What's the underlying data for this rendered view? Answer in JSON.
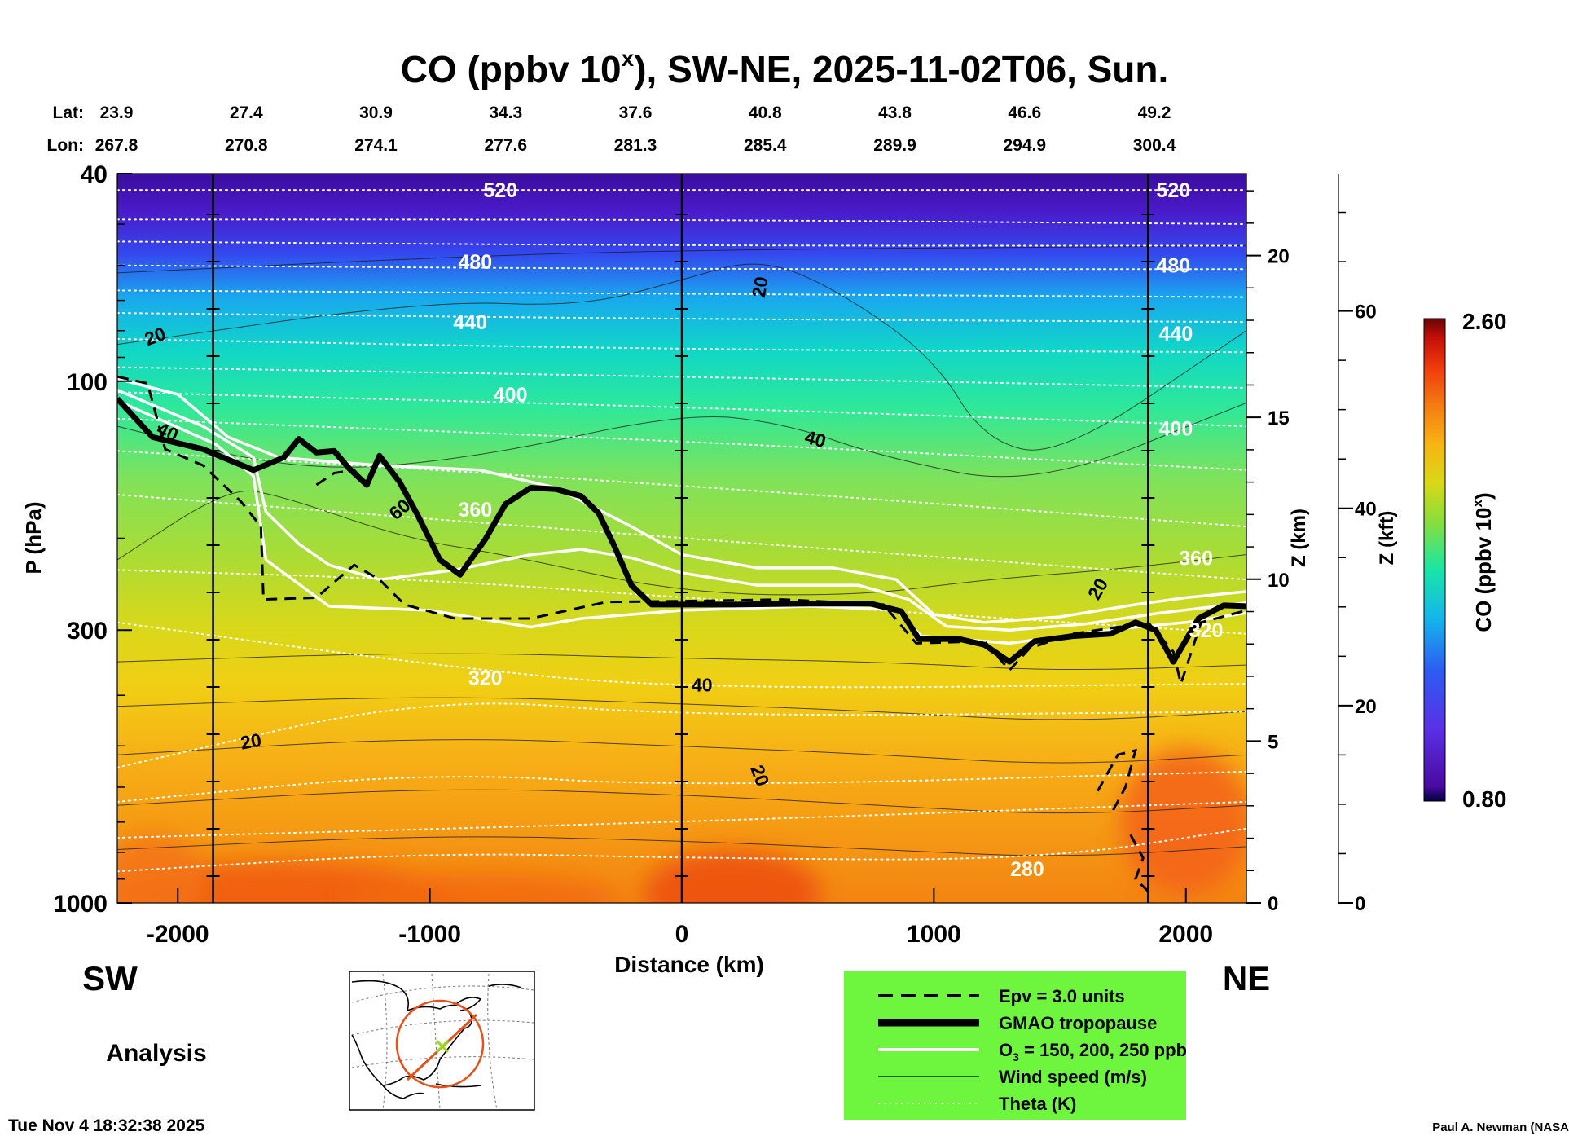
{
  "chart_data": {
    "type": "heatmap",
    "title": "CO (ppbv 10",
    "title_sup": "x",
    "title_rest": "), SW-NE, 2025-11-02T06, Sun.",
    "xlabel": "Distance (km)",
    "ylabel": "P (hPa)",
    "y2label": "Z (km)",
    "y3label": "Z (kft)",
    "x_range": [
      -2240,
      2240
    ],
    "y_range_hPa": [
      1000,
      40
    ],
    "y_scale": "log",
    "x_ticks": [
      "-2000",
      "-1000",
      "0",
      "1000",
      "2000"
    ],
    "x_tick_values": [
      -2000,
      -1000,
      0,
      1000,
      2000
    ],
    "p_ticks": [
      "40",
      "100",
      "300",
      "1000"
    ],
    "p_tick_values": [
      40,
      100,
      300,
      1000
    ],
    "z_km_ticks": [
      "0",
      "5",
      "10",
      "15",
      "20"
    ],
    "z_km_values": [
      0,
      5,
      10,
      15,
      20
    ],
    "z_kft_ticks": [
      "0",
      "20",
      "40",
      "60"
    ],
    "z_kft_values": [
      0,
      20,
      40,
      60
    ],
    "lat_label": "Lat:",
    "lon_label": "Lon:",
    "lat": [
      "23.9",
      "27.4",
      "30.9",
      "34.3",
      "37.6",
      "40.8",
      "43.8",
      "46.6",
      "49.2"
    ],
    "lon": [
      "267.8",
      "270.8",
      "274.1",
      "277.6",
      "281.3",
      "285.4",
      "289.9",
      "294.9",
      "300.4"
    ],
    "colorbar": {
      "label": "CO (ppbv 10",
      "label_sup": "x",
      "label_end": ")",
      "max": "2.60",
      "min": "0.80"
    },
    "theta_labels": [
      {
        "text": "520",
        "x": -720,
        "p": 43
      },
      {
        "text": "520",
        "x": 1950,
        "p": 43
      },
      {
        "text": "480",
        "x": -820,
        "p": 59
      },
      {
        "text": "480",
        "x": 1950,
        "p": 60
      },
      {
        "text": "440",
        "x": -840,
        "p": 77
      },
      {
        "text": "440",
        "x": 1960,
        "p": 81
      },
      {
        "text": "400",
        "x": -680,
        "p": 106
      },
      {
        "text": "400",
        "x": 1960,
        "p": 123
      },
      {
        "text": "360",
        "x": -820,
        "p": 176
      },
      {
        "text": "360",
        "x": 2040,
        "p": 218
      },
      {
        "text": "320",
        "x": -780,
        "p": 370
      },
      {
        "text": "320",
        "x": 2080,
        "p": 300
      },
      {
        "text": "280",
        "x": 1370,
        "p": 860
      }
    ],
    "wind_labels": [
      {
        "text": "20",
        "x": -2090,
        "p": 82,
        "rot": -20
      },
      {
        "text": "20",
        "x": 310,
        "p": 66,
        "rot": -80
      },
      {
        "text": "20",
        "x": -1710,
        "p": 490,
        "rot": -10
      },
      {
        "text": "20",
        "x": 310,
        "p": 570,
        "rot": 70
      },
      {
        "text": "20",
        "x": 1650,
        "p": 250,
        "rot": -60
      },
      {
        "text": "40",
        "x": -2040,
        "p": 125,
        "rot": 25
      },
      {
        "text": "40",
        "x": 530,
        "p": 129,
        "rot": 15
      },
      {
        "text": "40",
        "x": 80,
        "p": 382,
        "rot": 0
      },
      {
        "text": "60",
        "x": -1120,
        "p": 176,
        "rot": -40
      }
    ],
    "legend": [
      {
        "style": "epv",
        "label": "Epv = 3.0 units"
      },
      {
        "style": "trop",
        "label": "GMAO tropopause"
      },
      {
        "style": "o3",
        "label": "O",
        "sub": "3",
        "label_rest": " = 150, 200, 250 ppb"
      },
      {
        "style": "wind",
        "label": "Wind speed (m/s)"
      },
      {
        "style": "theta",
        "label": "Theta (K)"
      }
    ],
    "tropopause": [
      {
        "x": -2240,
        "p": 108
      },
      {
        "x": -2100,
        "p": 128
      },
      {
        "x": -1900,
        "p": 135
      },
      {
        "x": -1700,
        "p": 148
      },
      {
        "x": -1580,
        "p": 140
      },
      {
        "x": -1520,
        "p": 129
      },
      {
        "x": -1450,
        "p": 137
      },
      {
        "x": -1380,
        "p": 136
      },
      {
        "x": -1320,
        "p": 147
      },
      {
        "x": -1250,
        "p": 158
      },
      {
        "x": -1200,
        "p": 139
      },
      {
        "x": -1120,
        "p": 156
      },
      {
        "x": -1050,
        "p": 180
      },
      {
        "x": -960,
        "p": 220
      },
      {
        "x": -880,
        "p": 235
      },
      {
        "x": -850,
        "p": 224
      },
      {
        "x": -780,
        "p": 201
      },
      {
        "x": -700,
        "p": 172
      },
      {
        "x": -600,
        "p": 160
      },
      {
        "x": -500,
        "p": 161
      },
      {
        "x": -400,
        "p": 166
      },
      {
        "x": -330,
        "p": 179
      },
      {
        "x": -270,
        "p": 206
      },
      {
        "x": -200,
        "p": 246
      },
      {
        "x": -120,
        "p": 268
      },
      {
        "x": 0,
        "p": 268
      },
      {
        "x": 200,
        "p": 268
      },
      {
        "x": 500,
        "p": 267
      },
      {
        "x": 750,
        "p": 267
      },
      {
        "x": 870,
        "p": 276
      },
      {
        "x": 940,
        "p": 312
      },
      {
        "x": 1100,
        "p": 312
      },
      {
        "x": 1200,
        "p": 320
      },
      {
        "x": 1300,
        "p": 345
      },
      {
        "x": 1400,
        "p": 315
      },
      {
        "x": 1550,
        "p": 308
      },
      {
        "x": 1700,
        "p": 305
      },
      {
        "x": 1800,
        "p": 290
      },
      {
        "x": 1880,
        "p": 300
      },
      {
        "x": 1950,
        "p": 345
      },
      {
        "x": 2050,
        "p": 285
      },
      {
        "x": 2150,
        "p": 269
      },
      {
        "x": 2240,
        "p": 270
      }
    ],
    "o3_contours": [
      [
        {
          "x": -2240,
          "p": 99
        },
        {
          "x": -2000,
          "p": 106
        },
        {
          "x": -1800,
          "p": 128
        },
        {
          "x": -1600,
          "p": 140
        },
        {
          "x": -1200,
          "p": 145
        },
        {
          "x": -800,
          "p": 148
        },
        {
          "x": -500,
          "p": 160
        },
        {
          "x": -200,
          "p": 190
        },
        {
          "x": 0,
          "p": 215
        },
        {
          "x": 300,
          "p": 228
        },
        {
          "x": 600,
          "p": 228
        },
        {
          "x": 850,
          "p": 240
        },
        {
          "x": 1000,
          "p": 280
        },
        {
          "x": 1200,
          "p": 290
        },
        {
          "x": 1500,
          "p": 283
        },
        {
          "x": 1800,
          "p": 268
        },
        {
          "x": 2000,
          "p": 260
        },
        {
          "x": 2240,
          "p": 253
        }
      ],
      [
        {
          "x": -2240,
          "p": 104
        },
        {
          "x": -1900,
          "p": 122
        },
        {
          "x": -1700,
          "p": 140
        },
        {
          "x": -1650,
          "p": 178
        },
        {
          "x": -1520,
          "p": 205
        },
        {
          "x": -1400,
          "p": 225
        },
        {
          "x": -1200,
          "p": 240
        },
        {
          "x": -900,
          "p": 230
        },
        {
          "x": -600,
          "p": 215
        },
        {
          "x": -400,
          "p": 210
        },
        {
          "x": -200,
          "p": 218
        },
        {
          "x": 0,
          "p": 233
        },
        {
          "x": 300,
          "p": 246
        },
        {
          "x": 700,
          "p": 246
        },
        {
          "x": 900,
          "p": 262
        },
        {
          "x": 1050,
          "p": 295
        },
        {
          "x": 1300,
          "p": 300
        },
        {
          "x": 1600,
          "p": 292
        },
        {
          "x": 1900,
          "p": 278
        },
        {
          "x": 2240,
          "p": 266
        }
      ],
      [
        {
          "x": -2240,
          "p": 109
        },
        {
          "x": -1850,
          "p": 132
        },
        {
          "x": -1700,
          "p": 152
        },
        {
          "x": -1650,
          "p": 220
        },
        {
          "x": -1400,
          "p": 270
        },
        {
          "x": -1000,
          "p": 275
        },
        {
          "x": -600,
          "p": 296
        },
        {
          "x": -400,
          "p": 285
        },
        {
          "x": 0,
          "p": 275
        },
        {
          "x": 500,
          "p": 270
        },
        {
          "x": 850,
          "p": 274
        },
        {
          "x": 950,
          "p": 308
        },
        {
          "x": 1300,
          "p": 318
        },
        {
          "x": 1600,
          "p": 304
        },
        {
          "x": 1800,
          "p": 296
        },
        {
          "x": 2000,
          "p": 290
        },
        {
          "x": 2240,
          "p": 278
        }
      ]
    ],
    "epv_contours": [
      [
        {
          "x": -2240,
          "p": 98
        },
        {
          "x": -2120,
          "p": 101
        },
        {
          "x": -2050,
          "p": 135
        },
        {
          "x": -1900,
          "p": 145
        },
        {
          "x": -1750,
          "p": 170
        },
        {
          "x": -1670,
          "p": 190
        },
        {
          "x": -1660,
          "p": 262
        },
        {
          "x": -1450,
          "p": 260
        },
        {
          "x": -1300,
          "p": 225
        },
        {
          "x": -1200,
          "p": 240
        },
        {
          "x": -1100,
          "p": 268
        },
        {
          "x": -900,
          "p": 285
        },
        {
          "x": -600,
          "p": 285
        },
        {
          "x": -300,
          "p": 265
        },
        {
          "x": 0,
          "p": 264
        },
        {
          "x": 400,
          "p": 262
        },
        {
          "x": 800,
          "p": 268
        },
        {
          "x": 930,
          "p": 318
        },
        {
          "x": 1200,
          "p": 315
        },
        {
          "x": 1300,
          "p": 358
        },
        {
          "x": 1380,
          "p": 325
        },
        {
          "x": 1550,
          "p": 305
        },
        {
          "x": 1750,
          "p": 295
        },
        {
          "x": 1850,
          "p": 290
        },
        {
          "x": 1950,
          "p": 330
        },
        {
          "x": 1980,
          "p": 380
        },
        {
          "x": 2060,
          "p": 290
        },
        {
          "x": 2240,
          "p": 275
        }
      ],
      [
        {
          "x": -1450,
          "p": 158
        },
        {
          "x": -1380,
          "p": 150
        },
        {
          "x": -1300,
          "p": 148
        },
        {
          "x": -1250,
          "p": 158
        }
      ],
      [
        {
          "x": 1650,
          "p": 610
        },
        {
          "x": 1730,
          "p": 520
        },
        {
          "x": 1800,
          "p": 510
        },
        {
          "x": 1760,
          "p": 600
        },
        {
          "x": 1700,
          "p": 680
        }
      ],
      [
        {
          "x": 1780,
          "p": 740
        },
        {
          "x": 1830,
          "p": 820
        },
        {
          "x": 1800,
          "p": 900
        },
        {
          "x": 1850,
          "p": 950
        }
      ]
    ],
    "theta_lines": [
      [
        [
          -2240,
          43
        ],
        [
          0,
          43
        ],
        [
          2240,
          43
        ]
      ],
      [
        [
          -2240,
          49
        ],
        [
          0,
          49
        ],
        [
          2240,
          50
        ]
      ],
      [
        [
          -2240,
          54
        ],
        [
          0,
          55
        ],
        [
          2240,
          55
        ]
      ],
      [
        [
          -2240,
          60
        ],
        [
          0,
          61
        ],
        [
          2240,
          61
        ]
      ],
      [
        [
          -2240,
          67
        ],
        [
          0,
          68
        ],
        [
          2240,
          69
        ]
      ],
      [
        [
          -2240,
          74
        ],
        [
          0,
          76
        ],
        [
          2240,
          77
        ]
      ],
      [
        [
          -2240,
          83
        ],
        [
          0,
          87
        ],
        [
          2240,
          88
        ]
      ],
      [
        [
          -2240,
          94
        ],
        [
          0,
          98
        ],
        [
          2240,
          103
        ]
      ],
      [
        [
          -2240,
          105
        ],
        [
          0,
          112
        ],
        [
          2240,
          122
        ]
      ],
      [
        [
          -2240,
          118
        ],
        [
          0,
          130
        ],
        [
          2240,
          148
        ]
      ],
      [
        [
          -2240,
          136
        ],
        [
          0,
          158
        ],
        [
          2240,
          190
        ]
      ],
      [
        [
          -2240,
          165
        ],
        [
          0,
          200
        ],
        [
          2240,
          240
        ]
      ],
      [
        [
          -2240,
          230
        ],
        [
          -1000,
          240
        ],
        [
          0,
          260
        ],
        [
          2240,
          305
        ]
      ],
      [
        [
          -2240,
          290
        ],
        [
          -1000,
          350
        ],
        [
          0,
          390
        ],
        [
          2240,
          380
        ]
      ],
      [
        [
          -2240,
          550
        ],
        [
          -1000,
          400
        ],
        [
          0,
          440
        ],
        [
          2240,
          430
        ]
      ],
      [
        [
          -2240,
          640
        ],
        [
          -1000,
          560
        ],
        [
          0,
          600
        ],
        [
          2240,
          560
        ]
      ],
      [
        [
          -2240,
          750
        ],
        [
          0,
          700
        ],
        [
          2240,
          640
        ]
      ],
      [
        [
          -2240,
          870
        ],
        [
          -1000,
          800
        ],
        [
          0,
          820
        ],
        [
          1400,
          830
        ],
        [
          2240,
          720
        ]
      ]
    ],
    "wind_lines": [
      [
        [
          -2240,
          62
        ],
        [
          -1000,
          58
        ],
        [
          0,
          56
        ],
        [
          2240,
          55
        ]
      ],
      [
        [
          -2240,
          85
        ],
        [
          -1000,
          70
        ],
        [
          -400,
          72
        ],
        [
          0,
          64
        ],
        [
          300,
          58
        ],
        [
          600,
          66
        ],
        [
          1000,
          90
        ],
        [
          1200,
          130
        ],
        [
          1500,
          140
        ],
        [
          2240,
          80
        ]
      ],
      [
        [
          -2240,
          122
        ],
        [
          -1500,
          150
        ],
        [
          -800,
          140
        ],
        [
          0,
          115
        ],
        [
          400,
          120
        ],
        [
          800,
          140
        ],
        [
          1400,
          160
        ],
        [
          2240,
          110
        ]
      ],
      [
        [
          -2240,
          220
        ],
        [
          -1800,
          160
        ],
        [
          -1600,
          165
        ],
        [
          -1100,
          200
        ],
        [
          -700,
          215
        ],
        [
          0,
          255
        ],
        [
          700,
          258
        ],
        [
          1200,
          240
        ],
        [
          1700,
          230
        ],
        [
          2240,
          215
        ]
      ],
      [
        [
          -2240,
          345
        ],
        [
          -1000,
          330
        ],
        [
          0,
          340
        ],
        [
          800,
          345
        ],
        [
          1500,
          360
        ],
        [
          2240,
          350
        ]
      ],
      [
        [
          -2240,
          420
        ],
        [
          -1000,
          400
        ],
        [
          0,
          415
        ],
        [
          800,
          430
        ],
        [
          1500,
          450
        ],
        [
          2240,
          430
        ]
      ],
      [
        [
          -2240,
          520
        ],
        [
          -1000,
          480
        ],
        [
          0,
          500
        ],
        [
          800,
          520
        ],
        [
          1500,
          545
        ],
        [
          2240,
          520
        ]
      ],
      [
        [
          -2240,
          650
        ],
        [
          -1000,
          600
        ],
        [
          0,
          620
        ],
        [
          800,
          650
        ],
        [
          1500,
          680
        ],
        [
          2240,
          650
        ]
      ],
      [
        [
          -2240,
          790
        ],
        [
          -1000,
          740
        ],
        [
          0,
          760
        ],
        [
          800,
          790
        ],
        [
          1500,
          820
        ],
        [
          2240,
          780
        ]
      ]
    ],
    "co_blobs": [
      {
        "x": -1600,
        "p": 980,
        "rx": 700,
        "ry": 0.05,
        "color": "#f05a10"
      },
      {
        "x": -800,
        "p": 985,
        "rx": 550,
        "ry": 0.035,
        "color": "#f26a12"
      },
      {
        "x": 200,
        "p": 960,
        "rx": 350,
        "ry": 0.06,
        "color": "#ec4c0e"
      },
      {
        "x": 2000,
        "p": 700,
        "rx": 260,
        "ry": 0.1,
        "color": "#f36214"
      },
      {
        "x": -2100,
        "p": 900,
        "rx": 200,
        "ry": 0.06,
        "color": "#f37416"
      }
    ]
  }
}
